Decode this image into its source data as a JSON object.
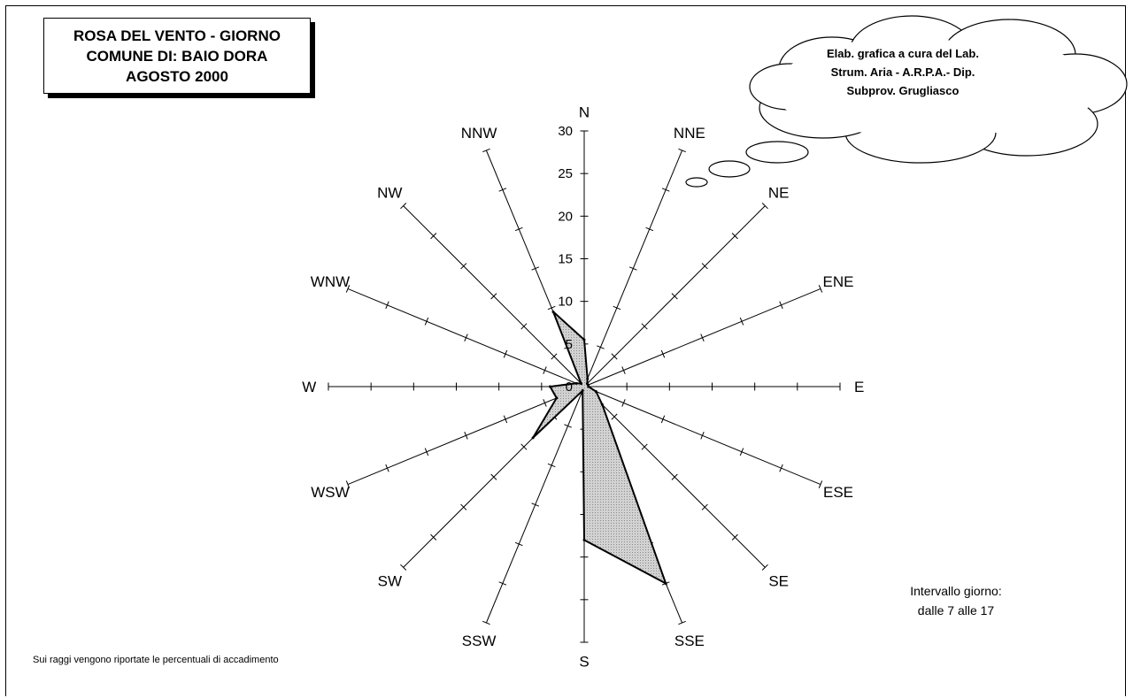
{
  "title": {
    "line1": "ROSA DEL VENTO - GIORNO",
    "line2": "COMUNE DI: BAIO DORA",
    "line3": "AGOSTO 2000"
  },
  "credit": {
    "line1": "Elab. grafica a cura del Lab.",
    "line2": "Strum. Aria - A.R.P.A.- Dip.",
    "line3": "Subprov. Grugliasco"
  },
  "footnote": "Sui raggi vengono riportate le percentuali di accadimento",
  "interval": {
    "line1": "Intervallo giorno:",
    "line2": "dalle 7 alle 17"
  },
  "chart_data": {
    "type": "radar",
    "directions": [
      "N",
      "NNE",
      "NE",
      "ENE",
      "E",
      "ESE",
      "SE",
      "SSE",
      "S",
      "SSW",
      "SW",
      "WSW",
      "W",
      "WNW",
      "NW",
      "NNW"
    ],
    "values": [
      5.5,
      1,
      0.5,
      0.5,
      0.5,
      1.5,
      3,
      25,
      18,
      0.5,
      8.5,
      3.5,
      4,
      1,
      0.5,
      9.5
    ],
    "radial_ticks": [
      "0",
      "5",
      "10",
      "15",
      "20",
      "25",
      "30"
    ],
    "rlim": [
      0,
      30
    ],
    "fill_color": "#c8c8c8",
    "line_color": "#000000"
  }
}
